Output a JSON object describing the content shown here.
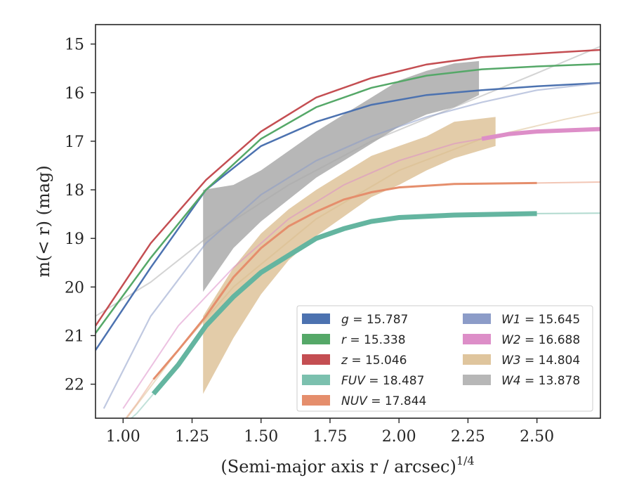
{
  "chart_data": {
    "type": "line",
    "xlabel": "(Semi-major axis r / arcsec)",
    "xlabel_exponent": "1/4",
    "ylabel": "m(< r) (mag)",
    "xlim": [
      0.9,
      2.73
    ],
    "ylim": [
      22.7,
      14.6
    ],
    "y_inverted": true,
    "x_ticks": [
      "1.00",
      "1.25",
      "1.50",
      "1.75",
      "2.00",
      "2.25",
      "2.50"
    ],
    "y_ticks": [
      "15",
      "16",
      "17",
      "18",
      "19",
      "20",
      "21",
      "22"
    ],
    "grid": false,
    "legend_position": "lower-right",
    "series": [
      {
        "name": "g = 15.787",
        "color": "#4c72b0",
        "style": "line",
        "x": [
          0.9,
          1.1,
          1.3,
          1.5,
          1.7,
          1.9,
          2.1,
          2.3,
          2.5,
          2.73
        ],
        "y": [
          21.3,
          19.6,
          18.0,
          17.1,
          16.6,
          16.25,
          16.05,
          15.95,
          15.87,
          15.8
        ]
      },
      {
        "name": "r = 15.338",
        "color": "#55a868",
        "style": "line",
        "x": [
          0.9,
          1.1,
          1.3,
          1.5,
          1.7,
          1.9,
          2.1,
          2.3,
          2.5,
          2.73
        ],
        "y": [
          20.95,
          19.4,
          18.0,
          16.95,
          16.3,
          15.9,
          15.65,
          15.52,
          15.46,
          15.41
        ]
      },
      {
        "name": "z = 15.046",
        "color": "#c44e52",
        "style": "line",
        "x": [
          0.9,
          1.1,
          1.3,
          1.5,
          1.7,
          1.9,
          2.1,
          2.3,
          2.58,
          2.73
        ],
        "y": [
          20.8,
          19.1,
          17.8,
          16.8,
          16.1,
          15.7,
          15.42,
          15.27,
          15.17,
          15.12
        ]
      },
      {
        "name": "FUV = 18.487",
        "color": "#64b5a0",
        "style": "band",
        "x": [
          1.11,
          1.2,
          1.3,
          1.4,
          1.5,
          1.6,
          1.7,
          1.8,
          1.9,
          2.0,
          2.2,
          2.5
        ],
        "y": [
          22.2,
          21.6,
          20.8,
          20.2,
          19.7,
          19.35,
          19.0,
          18.8,
          18.65,
          18.57,
          18.52,
          18.49
        ]
      },
      {
        "name": "NUV = 17.844",
        "color": "#e58e6c",
        "style": "line",
        "x": [
          1.11,
          1.2,
          1.3,
          1.4,
          1.5,
          1.6,
          1.7,
          1.8,
          1.9,
          2.0,
          2.2,
          2.5
        ],
        "y": [
          21.9,
          21.3,
          20.6,
          19.8,
          19.2,
          18.75,
          18.45,
          18.2,
          18.05,
          17.95,
          17.88,
          17.86
        ]
      },
      {
        "name": "W1 = 15.645",
        "color": "#8c9cc8",
        "style": "line",
        "x": [
          0.93,
          1.1,
          1.3,
          1.5,
          1.7,
          1.9,
          2.1,
          2.3,
          2.5,
          2.73
        ],
        "y": [
          22.5,
          20.6,
          19.1,
          18.1,
          17.4,
          16.9,
          16.5,
          16.2,
          15.95,
          15.8
        ]
      },
      {
        "name": "W2 = 16.688",
        "color": "#dd8ec8",
        "style": "line",
        "x": [
          1.0,
          1.2,
          1.4,
          1.6,
          1.8,
          2.0,
          2.2,
          2.4,
          2.5,
          2.73
        ],
        "y": [
          22.5,
          20.8,
          19.6,
          18.6,
          17.9,
          17.4,
          17.05,
          16.85,
          16.8,
          16.75
        ]
      },
      {
        "name": "W3 = 14.804",
        "color": "#d9bb8c",
        "style": "band",
        "x": [
          1.29,
          1.4,
          1.5,
          1.6,
          1.7,
          1.8,
          1.9,
          2.0,
          2.1,
          2.2,
          2.35
        ],
        "y": [
          21.2,
          20.2,
          19.45,
          18.9,
          18.5,
          18.15,
          17.8,
          17.55,
          17.3,
          17.05,
          16.85
        ]
      },
      {
        "name": "W4 = 13.878",
        "color": "#aaaaaa",
        "style": "band",
        "x": [
          1.29,
          1.4,
          1.5,
          1.6,
          1.7,
          1.8,
          1.9,
          2.0,
          2.1,
          2.2,
          2.29
        ],
        "y": [
          19.1,
          18.45,
          18.05,
          17.65,
          17.25,
          16.9,
          16.55,
          16.2,
          16.0,
          15.85,
          15.75
        ]
      }
    ]
  }
}
